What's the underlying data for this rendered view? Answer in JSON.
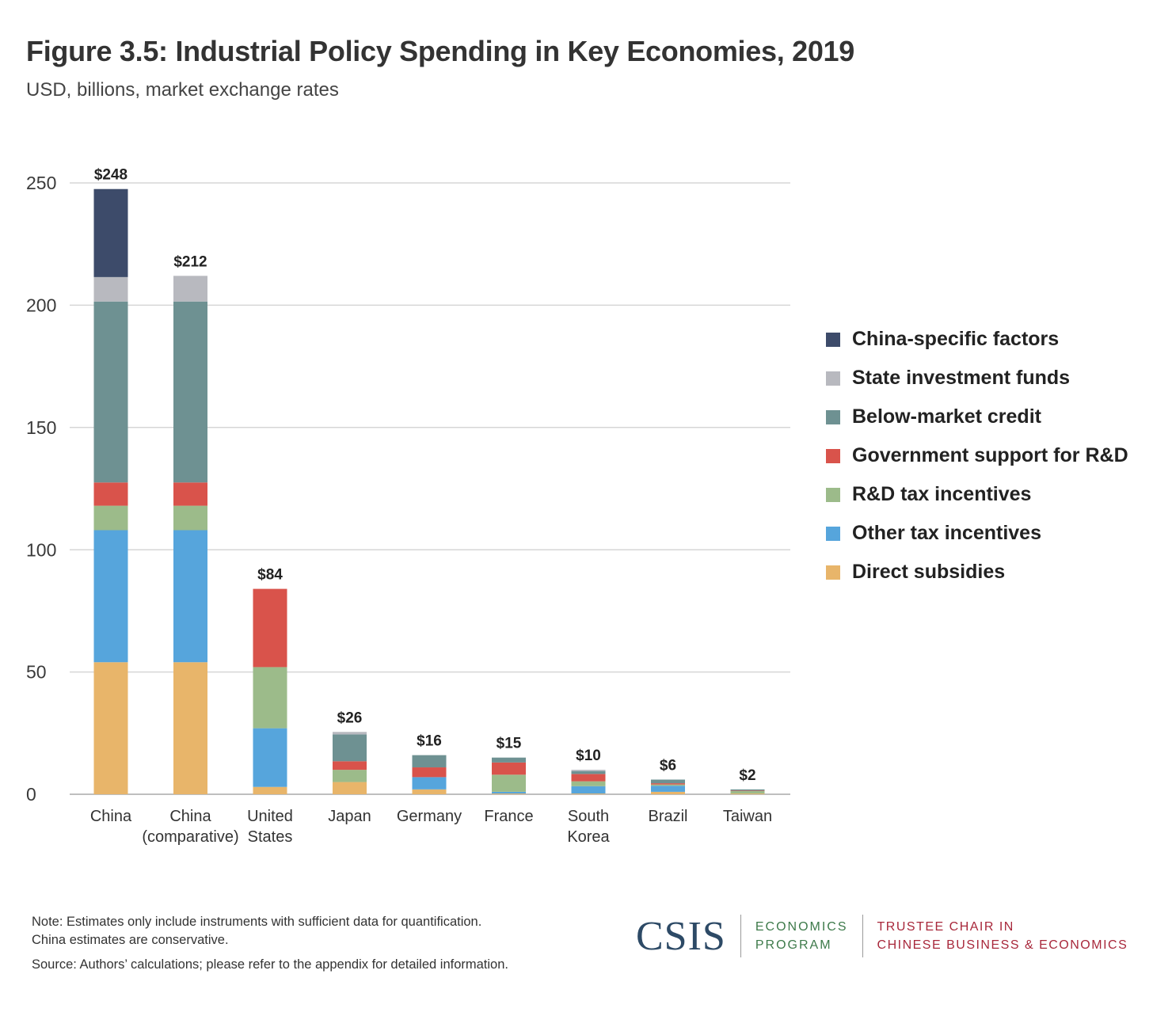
{
  "chart_data": {
    "type": "bar",
    "stacked": true,
    "title": "Figure 3.5: Industrial Policy Spending in Key Economies, 2019",
    "subtitle": "USD, billions, market exchange rates",
    "categories": [
      [
        "China"
      ],
      [
        "China",
        "(comparative)"
      ],
      [
        "United",
        "States"
      ],
      [
        "Japan"
      ],
      [
        "Germany"
      ],
      [
        "France"
      ],
      [
        "South",
        "Korea"
      ],
      [
        "Brazil"
      ],
      [
        "Taiwan"
      ]
    ],
    "ylim": [
      0,
      250
    ],
    "yticks": [
      0,
      50,
      100,
      150,
      200,
      250
    ],
    "grid": true,
    "legend_position": "right",
    "series": [
      {
        "name": "Direct subsidies",
        "color": "#E8B56A",
        "values": [
          54,
          54,
          3,
          5,
          2,
          0.3,
          0.3,
          1,
          0.3
        ]
      },
      {
        "name": "Other tax incentives",
        "color": "#56A5DC",
        "values": [
          54,
          54,
          24,
          0,
          5,
          0.7,
          3,
          2.5,
          0
        ]
      },
      {
        "name": "R&D tax incentives",
        "color": "#9CBB8A",
        "values": [
          10,
          10,
          25,
          5,
          0,
          7,
          2,
          0.5,
          1
        ]
      },
      {
        "name": "Government support for R&D",
        "color": "#D9534B",
        "values": [
          9.5,
          9.5,
          32,
          3.5,
          4,
          5,
          3,
          0.5,
          0.2
        ]
      },
      {
        "name": "Below-market credit",
        "color": "#6E9192",
        "values": [
          74,
          74,
          0,
          11,
          5,
          2,
          1.2,
          1.5,
          0.5
        ]
      },
      {
        "name": "State investment funds",
        "color": "#B8B9BF",
        "values": [
          10,
          10.5,
          0,
          1,
          0,
          0,
          0.5,
          0,
          0
        ]
      },
      {
        "name": "China-specific factors",
        "color": "#3D4B6A",
        "values": [
          36,
          0,
          0,
          0,
          0,
          0,
          0,
          0,
          0
        ]
      }
    ],
    "totals": [
      "$248",
      "$212",
      "$84",
      "$26",
      "$16",
      "$15",
      "$10",
      "$6",
      "$2"
    ]
  },
  "notes": {
    "line1": "Note: Estimates only include instruments with sufficient data for quantification.",
    "line2": "China estimates are conservative.",
    "source": "Source: Authors’ calculations; please refer to the appendix for detailed information."
  },
  "branding": {
    "csis": "CSIS",
    "econ_line1": "ECONOMICS",
    "econ_line2": "PROGRAM",
    "trustee_line1": "TRUSTEE CHAIR IN",
    "trustee_line2": "CHINESE BUSINESS & ECONOMICS",
    "econ_color": "#3D7A4A",
    "trustee_color": "#A8283B",
    "csis_color": "#2D4A66"
  }
}
